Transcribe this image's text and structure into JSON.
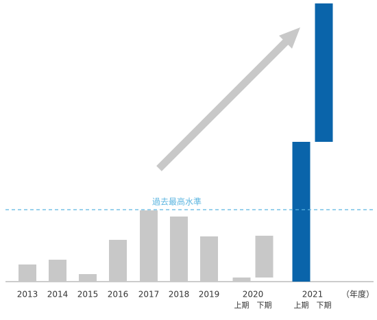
{
  "chart_data": {
    "type": "waterfall",
    "bars": [
      {
        "category": "2013",
        "values": [
          25
        ],
        "color": "#c8c8c8"
      },
      {
        "category": "2014",
        "values": [
          32
        ],
        "color": "#c8c8c8"
      },
      {
        "category": "2015",
        "values": [
          11
        ],
        "color": "#c8c8c8"
      },
      {
        "category": "2016",
        "values": [
          61
        ],
        "color": "#c8c8c8"
      },
      {
        "category": "2017",
        "values": [
          104
        ],
        "color": "#c8c8c8"
      },
      {
        "category": "2018",
        "values": [
          95
        ],
        "color": "#c8c8c8"
      },
      {
        "category": "2019",
        "values": [
          66
        ],
        "color": "#c8c8c8"
      },
      {
        "category": "2020",
        "sub_labels": [
          "上期",
          "下期"
        ],
        "values": [
          6,
          61
        ],
        "color": "#c8c8c8"
      },
      {
        "category": "2021",
        "sub_labels": [
          "上期",
          "下期"
        ],
        "values": [
          204,
          202
        ],
        "color": "#0a64aa"
      }
    ],
    "x_unit_label": "（年度）",
    "reference_line": {
      "value": 105,
      "label": "過去最高水準",
      "color": "#5bb5e0"
    },
    "ylim": [
      0,
      406
    ]
  }
}
